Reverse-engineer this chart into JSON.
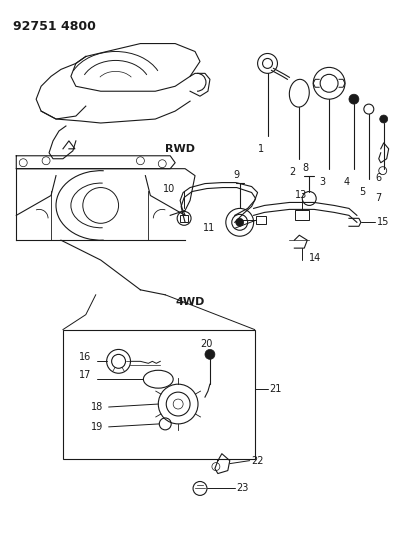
{
  "title": "92751 4800",
  "bg_color": "#ffffff",
  "line_color": "#1a1a1a",
  "rwd_label": "RWD",
  "fwd_label": "4WD",
  "fig_width": 4.0,
  "fig_height": 5.33,
  "dpi": 100
}
